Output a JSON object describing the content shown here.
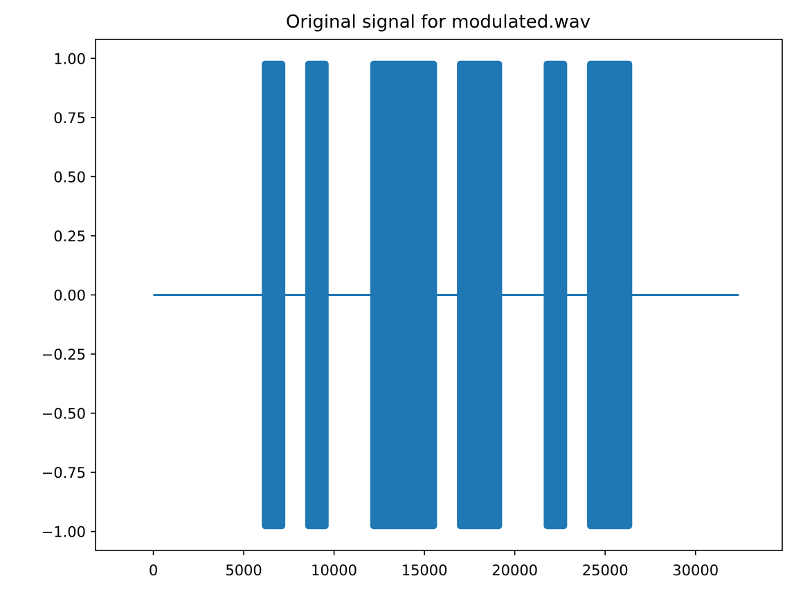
{
  "chart_data": {
    "type": "line",
    "title": "Original signal for modulated.wav",
    "xlabel": "",
    "ylabel": "",
    "xlim": [
      -3200,
      34800
    ],
    "ylim": [
      -1.08,
      1.08
    ],
    "xticks": [
      0,
      5000,
      10000,
      15000,
      20000,
      25000,
      30000
    ],
    "xtick_labels": [
      "0",
      "5000",
      "10000",
      "15000",
      "20000",
      "25000",
      "30000"
    ],
    "yticks": [
      1.0,
      0.75,
      0.5,
      0.25,
      0.0,
      -0.25,
      -0.5,
      -0.75,
      -1.0
    ],
    "ytick_labels": [
      "1.00",
      "0.75",
      "0.50",
      "0.25",
      "0.00",
      "−0.25",
      "−0.50",
      "−0.75",
      "−1.00"
    ],
    "grid": false,
    "legend": "none",
    "series": [
      {
        "color": "#1f77b4",
        "x_range": [
          0,
          32400
        ],
        "baseline": 0.0,
        "amplitude": 0.99,
        "active_segments": [
          [
            6000,
            7300
          ],
          [
            8400,
            9700
          ],
          [
            12000,
            15700
          ],
          [
            16800,
            19300
          ],
          [
            21600,
            22900
          ],
          [
            24000,
            26500
          ]
        ]
      }
    ]
  }
}
